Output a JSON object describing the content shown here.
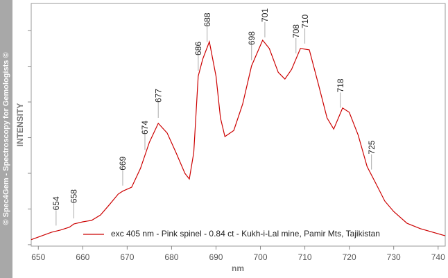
{
  "chart_data": {
    "type": "line",
    "watermark": "© Spec4Gem - Spectroscopy for Gemologists ©",
    "xlabel": "nm",
    "ylabel": "INTENSITY",
    "x": [
      648.4,
      653,
      655,
      657,
      658,
      660,
      662,
      664,
      666,
      668,
      669,
      671,
      673,
      675,
      677,
      679,
      681,
      683,
      684,
      685,
      686,
      687,
      688.5,
      690,
      691,
      692,
      694,
      696,
      698,
      700.5,
      702,
      704,
      705.5,
      707,
      709,
      711,
      713,
      715,
      716.5,
      718.5,
      720,
      722,
      724,
      726,
      728,
      730,
      733,
      736,
      741.6
    ],
    "series": [
      {
        "name": "exc 405 nm - Pink spinel - 0.84 ct - Kukh-i-Lal mine, Pamir Mts, Tajikistan",
        "color": "#cc0000",
        "values": [
          0.14,
          0.35,
          0.41,
          0.49,
          0.58,
          0.64,
          0.68,
          0.83,
          1.12,
          1.42,
          1.5,
          1.61,
          2.14,
          2.87,
          3.4,
          3.13,
          2.58,
          2.0,
          1.84,
          2.58,
          4.72,
          5.2,
          5.69,
          4.72,
          3.55,
          3.03,
          3.2,
          3.94,
          5.01,
          5.73,
          5.5,
          4.83,
          4.64,
          4.91,
          5.5,
          5.46,
          4.52,
          3.55,
          3.24,
          3.83,
          3.71,
          3.07,
          2.19,
          1.71,
          1.22,
          0.93,
          0.6,
          0.45,
          0.25
        ]
      }
    ],
    "peak_labels": [
      654,
      658,
      669,
      674,
      677,
      686,
      688,
      698,
      701,
      708,
      710,
      718,
      725
    ],
    "xlim": [
      648.4,
      741.6
    ],
    "xticks": [
      650,
      660,
      670,
      680,
      690,
      700,
      710,
      720,
      730,
      740
    ],
    "ylim": [
      -0.04,
      6.76
    ],
    "yticks": [
      0,
      1,
      2,
      3,
      4,
      5,
      6
    ]
  }
}
